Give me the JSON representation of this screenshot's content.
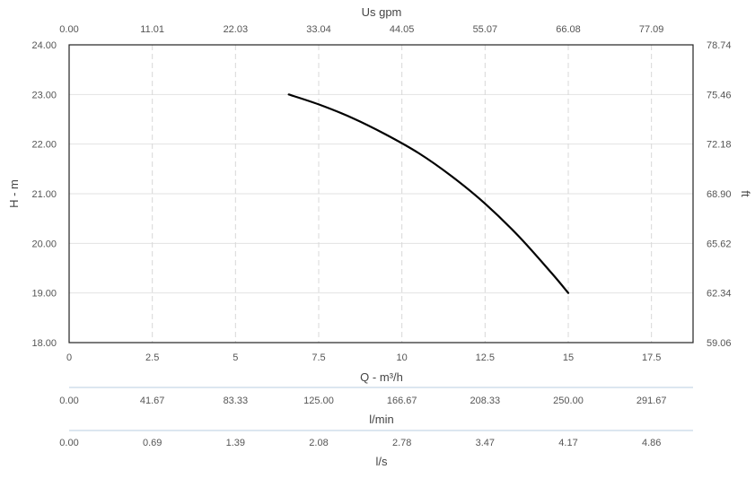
{
  "chart_data": {
    "type": "line",
    "xlabel": "Q - m³/h",
    "ylabel": "H - m",
    "ylabel_right": "ft",
    "xlabel_top": "Us gpm",
    "xlim": [
      0,
      18.75
    ],
    "ylim": [
      18,
      24
    ],
    "grid": true,
    "x_ticks": [
      "0",
      "2.5",
      "5",
      "7.5",
      "10",
      "12.5",
      "15",
      "17.5"
    ],
    "x_tick_values": [
      0,
      2.5,
      5,
      7.5,
      10,
      12.5,
      15,
      17.5
    ],
    "y_ticks": [
      "18.00",
      "19.00",
      "20.00",
      "21.00",
      "22.00",
      "23.00",
      "24.00"
    ],
    "y_tick_values": [
      18,
      19,
      20,
      21,
      22,
      23,
      24
    ],
    "top_ticks": [
      "0.00",
      "11.01",
      "22.03",
      "33.04",
      "44.05",
      "55.07",
      "66.08",
      "77.09"
    ],
    "right_ticks": [
      "59.06",
      "62.34",
      "65.62",
      "68.90",
      "72.18",
      "75.46",
      "78.74"
    ],
    "lmin_label": "l/min",
    "lmin_ticks": [
      "0.00",
      "41.67",
      "83.33",
      "125.00",
      "166.67",
      "208.33",
      "250.00",
      "291.67"
    ],
    "ls_label": "l/s",
    "ls_ticks": [
      "0.00",
      "0.69",
      "1.39",
      "2.08",
      "2.78",
      "3.47",
      "4.17",
      "4.86"
    ],
    "series": [
      {
        "color": "#000000",
        "x": [
          6.6,
          7.5,
          8.5,
          9.5,
          10.5,
          11.5,
          12.5,
          13.5,
          14.5,
          15.0
        ],
        "y": [
          23.0,
          22.8,
          22.53,
          22.2,
          21.82,
          21.35,
          20.8,
          20.15,
          19.4,
          19.0
        ]
      }
    ]
  }
}
